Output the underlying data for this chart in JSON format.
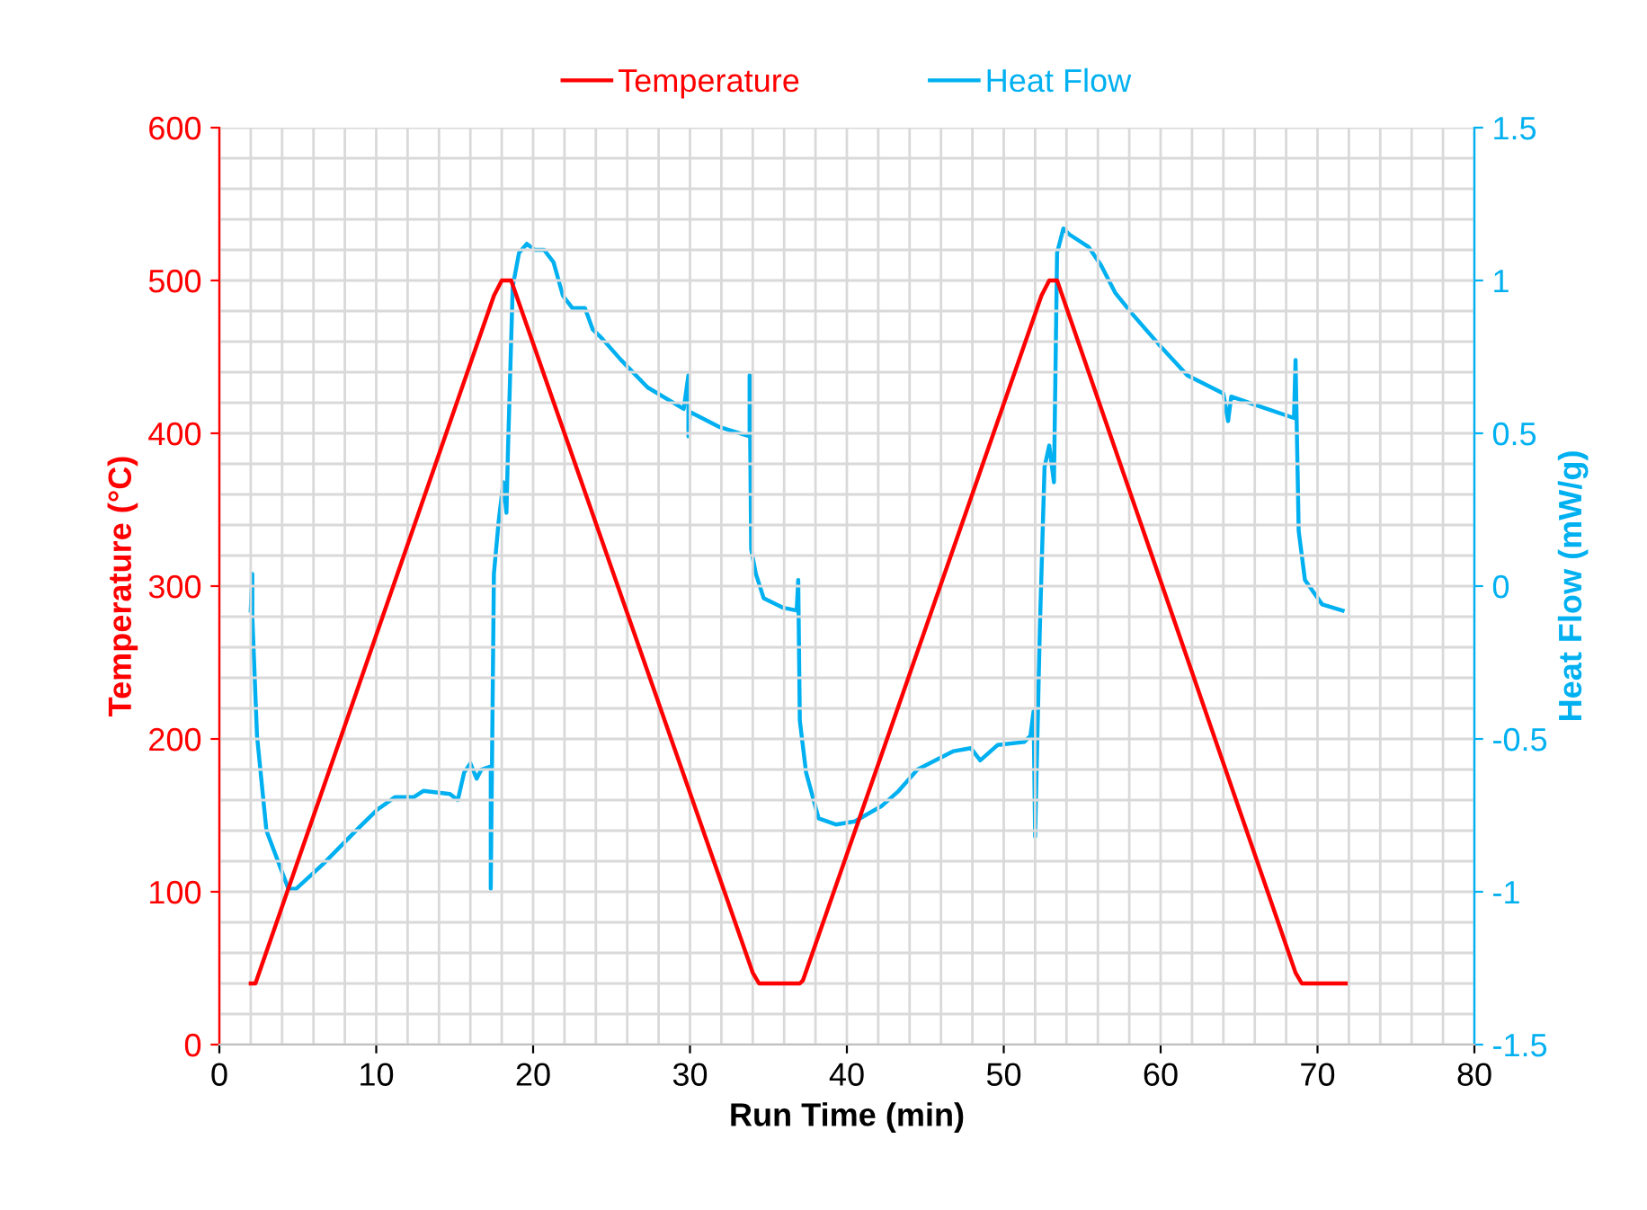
{
  "chart_data": {
    "type": "line",
    "xlabel": "Run Time (min)",
    "ylabel": "Temperature (°C)",
    "y2label": "Heat Flow (mW/g)",
    "xlim": [
      0,
      80
    ],
    "xticks": [
      0,
      10,
      20,
      30,
      40,
      50,
      60,
      70,
      80
    ],
    "ylim": [
      0,
      600
    ],
    "yticks": [
      0,
      100,
      200,
      300,
      400,
      500,
      600
    ],
    "y2lim": [
      -1.5,
      1.5
    ],
    "y2ticks": [
      -1.5,
      -1,
      -0.5,
      0,
      0.5,
      1,
      1.5
    ],
    "grid": true,
    "legend": "top",
    "line_style": "solid",
    "marker": "none",
    "series": [
      {
        "name": "Temperature",
        "color": "#ff0000",
        "x": [
          2.0,
          2.3,
          17.5,
          18.0,
          18.6,
          34.0,
          34.4,
          37.0,
          37.2,
          52.4,
          52.9,
          53.4,
          68.6,
          69.0,
          71.8
        ],
        "values": [
          40,
          40,
          490,
          500,
          500,
          47,
          40,
          40,
          42,
          490,
          500,
          500,
          47,
          40,
          40
        ]
      },
      {
        "name": "Heat Flow",
        "color": "#00b0f0",
        "axis": "y2",
        "x": [
          2.0,
          2.1,
          2.1,
          2.4,
          3.0,
          4.4,
          4.9,
          6.6,
          8.9,
          10.1,
          11.2,
          12.4,
          13.0,
          14.7,
          15.2,
          15.6,
          16.0,
          16.4,
          16.7,
          17.3,
          17.3,
          17.5,
          17.8,
          18.1,
          18.3,
          18.4,
          18.7,
          19.1,
          19.6,
          20.1,
          20.7,
          21.3,
          21.9,
          22.5,
          23.3,
          23.8,
          24.4,
          25.6,
          27.3,
          29.6,
          29.9,
          29.9,
          30.0,
          31.9,
          33.8,
          33.8,
          33.9,
          34.2,
          34.7,
          35.9,
          36.8,
          36.9,
          37.0,
          37.4,
          38.2,
          39.3,
          40.5,
          42.2,
          43.3,
          44.5,
          46.8,
          47.9,
          48.5,
          49.6,
          51.3,
          51.7,
          51.9,
          52.0,
          52.3,
          52.6,
          52.9,
          53.2,
          53.4,
          53.8,
          54.2,
          55.4,
          56.2,
          57.1,
          58.2,
          59.9,
          61.7,
          64.0,
          64.3,
          64.5,
          66.2,
          68.5,
          68.6,
          68.8,
          69.2,
          70.3,
          71.6
        ],
        "values": [
          -0.08,
          0.04,
          -0.1,
          -0.49,
          -0.8,
          -0.99,
          -0.99,
          -0.91,
          -0.79,
          -0.73,
          -0.69,
          -0.69,
          -0.67,
          -0.68,
          -0.7,
          -0.61,
          -0.58,
          -0.63,
          -0.6,
          -0.59,
          -0.99,
          0.04,
          0.21,
          0.34,
          0.24,
          0.45,
          0.98,
          1.09,
          1.12,
          1.1,
          1.1,
          1.06,
          0.95,
          0.91,
          0.91,
          0.84,
          0.81,
          0.74,
          0.65,
          0.58,
          0.69,
          0.49,
          0.57,
          0.52,
          0.49,
          0.69,
          0.12,
          0.04,
          -0.04,
          -0.07,
          -0.08,
          0.02,
          -0.44,
          -0.61,
          -0.76,
          -0.78,
          -0.77,
          -0.72,
          -0.67,
          -0.6,
          -0.54,
          -0.53,
          -0.57,
          -0.52,
          -0.51,
          -0.49,
          -0.41,
          -0.82,
          -0.14,
          0.39,
          0.46,
          0.34,
          1.09,
          1.17,
          1.15,
          1.11,
          1.05,
          0.96,
          0.89,
          0.79,
          0.69,
          0.63,
          0.54,
          0.62,
          0.59,
          0.55,
          0.74,
          0.18,
          0.02,
          -0.06,
          -0.08
        ]
      }
    ]
  }
}
